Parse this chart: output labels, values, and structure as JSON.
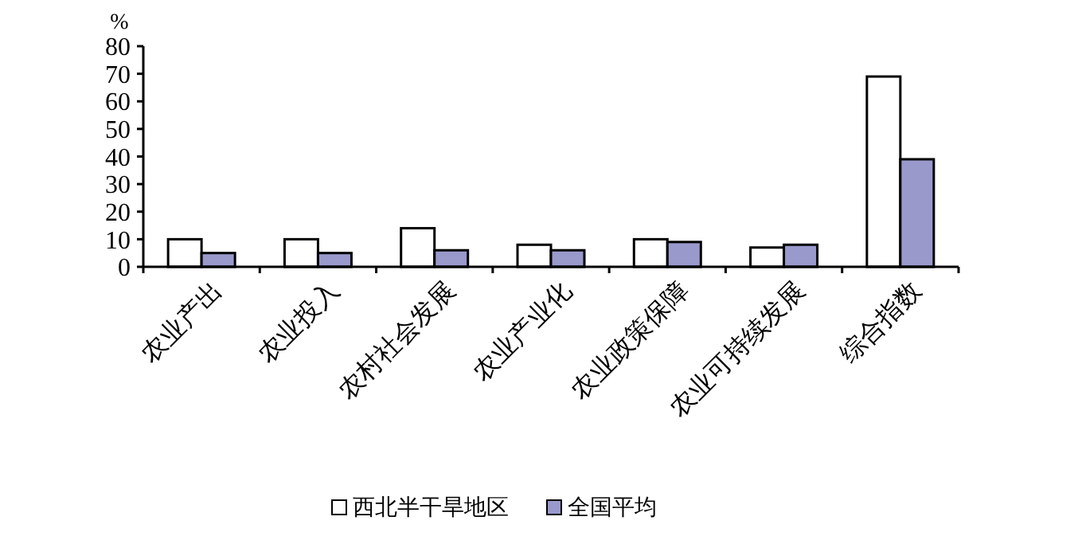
{
  "chart_data": {
    "type": "bar",
    "ylabel": "%",
    "categories": [
      "农业产出",
      "农业投入",
      "农村社会发展",
      "农业产业化",
      "农业政策保障",
      "农业可持续发展",
      "综合指数"
    ],
    "series": [
      {
        "name": "西北半干旱地区",
        "color": "#ffffff",
        "values": [
          10,
          10,
          14,
          8,
          10,
          7,
          69
        ]
      },
      {
        "name": "全国平均",
        "color": "#9999cc",
        "values": [
          5,
          5,
          6,
          6,
          9,
          8,
          39
        ]
      }
    ],
    "ylim": [
      0,
      80
    ],
    "yticks": [
      0,
      10,
      20,
      30,
      40,
      50,
      60,
      70,
      80
    ],
    "grid": false,
    "legend": "bottom"
  }
}
